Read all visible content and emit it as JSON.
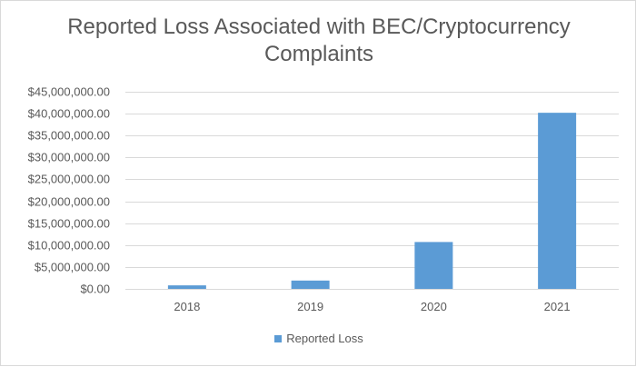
{
  "chart_data": {
    "type": "bar",
    "title_line1": "Reported Loss Associated with BEC/Cryptocurrency",
    "title_line2": "Complaints",
    "categories": [
      "2018",
      "2019",
      "2020",
      "2021"
    ],
    "series": [
      {
        "name": "Reported Loss",
        "values": [
          800000,
          1900000,
          10700000,
          40200000
        ]
      }
    ],
    "ylim": [
      0,
      45000000
    ],
    "yticks": [
      "$0.00",
      "$5,000,000.00",
      "$10,000,000.00",
      "$15,000,000.00",
      "$20,000,000.00",
      "$25,000,000.00",
      "$30,000,000.00",
      "$35,000,000.00",
      "$40,000,000.00",
      "$45,000,000.00"
    ],
    "ytick_values": [
      0,
      5000000,
      10000000,
      15000000,
      20000000,
      25000000,
      30000000,
      35000000,
      40000000,
      45000000
    ],
    "grid": true,
    "legend_position": "bottom",
    "bar_color": "#5b9bd5",
    "grid_color": "#d9d9d9"
  }
}
